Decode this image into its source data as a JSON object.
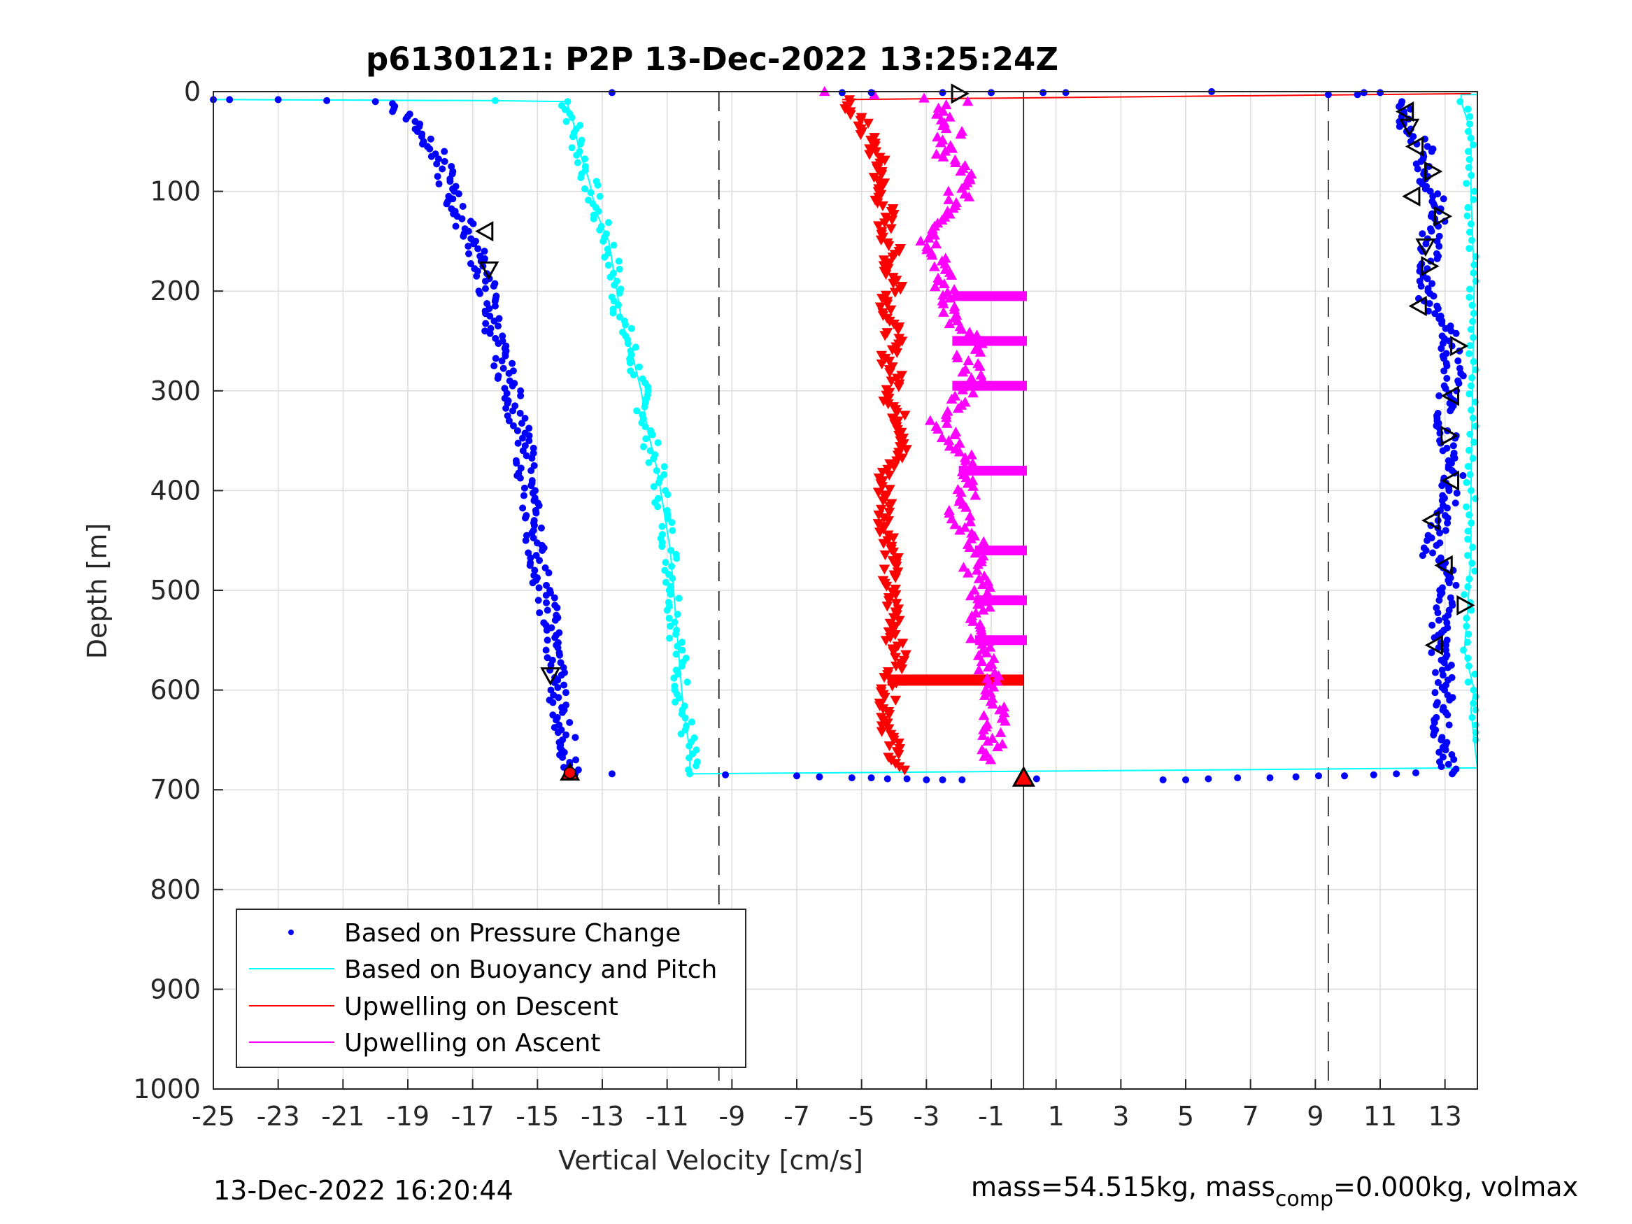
{
  "chart_data": {
    "type": "scatter",
    "title": "p6130121: P2P 13-Dec-2022 13:25:24Z",
    "xlabel": "Vertical Velocity [cm/s]",
    "ylabel": "Depth [m]",
    "xlim": [
      -25,
      14
    ],
    "ylim": [
      0,
      1000
    ],
    "y_reversed": true,
    "grid": true,
    "legend_position": "bottom-left",
    "x_ticks": [
      -25,
      -23,
      -21,
      -19,
      -17,
      -15,
      -13,
      -11,
      -9,
      -7,
      -5,
      -3,
      -1,
      1,
      3,
      5,
      7,
      9,
      11,
      13
    ],
    "y_ticks": [
      0,
      100,
      200,
      300,
      400,
      500,
      600,
      700,
      800,
      900,
      1000
    ],
    "reference_lines": [
      {
        "x": -9.4,
        "style": "dashed"
      },
      {
        "x": 9.4,
        "style": "dashed"
      },
      {
        "x": 0,
        "style": "solid"
      }
    ],
    "series": [
      {
        "name": "Based on Pressure Change",
        "color": "#0000ff",
        "marker": "dot",
        "descent": [
          [
            -25,
            8
          ],
          [
            -24.5,
            8
          ],
          [
            -23,
            8
          ],
          [
            -21.5,
            9
          ],
          [
            -20,
            10
          ],
          [
            -19.5,
            12
          ],
          [
            -19.2,
            20
          ],
          [
            -18.8,
            30
          ],
          [
            -18.3,
            50
          ],
          [
            -18,
            70
          ],
          [
            -17.8,
            90
          ],
          [
            -17.6,
            110
          ],
          [
            -17.3,
            130
          ],
          [
            -17,
            150
          ],
          [
            -16.8,
            170
          ],
          [
            -16.6,
            190
          ],
          [
            -16.5,
            210
          ],
          [
            -16.4,
            230
          ],
          [
            -16.2,
            260
          ],
          [
            -16,
            280
          ],
          [
            -15.8,
            300
          ],
          [
            -15.6,
            330
          ],
          [
            -15.4,
            360
          ],
          [
            -15.3,
            400
          ],
          [
            -15.1,
            440
          ],
          [
            -15,
            470
          ],
          [
            -14.8,
            500
          ],
          [
            -14.6,
            530
          ],
          [
            -14.5,
            560
          ],
          [
            -14.4,
            590
          ],
          [
            -14.3,
            620
          ],
          [
            -14.1,
            650
          ],
          [
            -14,
            680
          ],
          [
            -14,
            684
          ]
        ],
        "ascent": [
          [
            13.1,
            684
          ],
          [
            12.9,
            660
          ],
          [
            12.9,
            630
          ],
          [
            13,
            600
          ],
          [
            12.9,
            570
          ],
          [
            12.8,
            540
          ],
          [
            13.1,
            510
          ],
          [
            13,
            480
          ],
          [
            12.5,
            465
          ],
          [
            12.8,
            440
          ],
          [
            13.1,
            410
          ],
          [
            13.3,
            380
          ],
          [
            13.1,
            350
          ],
          [
            12.9,
            320
          ],
          [
            13.3,
            290
          ],
          [
            13.2,
            260
          ],
          [
            13,
            230
          ],
          [
            12.5,
            210
          ],
          [
            12.3,
            190
          ],
          [
            12.6,
            170
          ],
          [
            12.5,
            150
          ],
          [
            12.9,
            120
          ],
          [
            12.6,
            100
          ],
          [
            12.3,
            80
          ],
          [
            12.4,
            60
          ],
          [
            11.9,
            40
          ],
          [
            11.7,
            20
          ],
          [
            11.9,
            10
          ]
        ],
        "bottom_turnaround": [
          [
            -12.7,
            684
          ],
          [
            -9.2,
            685
          ],
          [
            -7,
            686
          ],
          [
            -6.3,
            687
          ],
          [
            -5.3,
            688
          ],
          [
            -4.7,
            688
          ],
          [
            -4.2,
            689
          ],
          [
            -3.6,
            689
          ],
          [
            -3,
            690
          ],
          [
            -2.5,
            690
          ],
          [
            -1.9,
            690
          ],
          [
            0.4,
            689
          ],
          [
            4.3,
            690
          ],
          [
            5,
            690
          ],
          [
            5.7,
            689
          ],
          [
            6.6,
            688
          ],
          [
            7.6,
            688
          ],
          [
            8.4,
            687
          ],
          [
            9.1,
            686
          ],
          [
            9.9,
            686
          ],
          [
            10.8,
            685
          ],
          [
            11.5,
            684
          ],
          [
            12.1,
            683
          ]
        ],
        "surface": [
          [
            -12.7,
            1
          ],
          [
            -5.6,
            1
          ],
          [
            -4.7,
            1
          ],
          [
            -2.5,
            1
          ],
          [
            -1,
            1
          ],
          [
            0.6,
            1
          ],
          [
            1.3,
            1
          ],
          [
            5.8,
            0
          ],
          [
            9.4,
            3
          ],
          [
            10.5,
            1
          ],
          [
            10.3,
            3
          ],
          [
            11,
            1
          ]
        ]
      },
      {
        "name": "Based on Buoyancy and Pitch",
        "color": "#00ffff",
        "marker": "line-dot",
        "descent": [
          [
            -25,
            8
          ],
          [
            -24.5,
            8
          ],
          [
            -16.3,
            9
          ],
          [
            -14.1,
            10
          ],
          [
            -13.9,
            30
          ],
          [
            -13.7,
            60
          ],
          [
            -13.4,
            90
          ],
          [
            -13.2,
            120
          ],
          [
            -12.8,
            150
          ],
          [
            -12.6,
            190
          ],
          [
            -12.4,
            230
          ],
          [
            -12.1,
            260
          ],
          [
            -11.8,
            300
          ],
          [
            -11.6,
            340
          ],
          [
            -11.3,
            380
          ],
          [
            -11.1,
            420
          ],
          [
            -10.9,
            460
          ],
          [
            -10.8,
            500
          ],
          [
            -10.7,
            540
          ],
          [
            -10.6,
            580
          ],
          [
            -10.5,
            620
          ],
          [
            -10.3,
            660
          ],
          [
            -10.3,
            684
          ]
        ],
        "ascent": [
          [
            -10.3,
            684
          ],
          [
            14,
            678
          ],
          [
            13.9,
            650
          ],
          [
            13.8,
            620
          ],
          [
            13.9,
            600
          ],
          [
            13.6,
            560
          ],
          [
            13.7,
            520
          ],
          [
            13.8,
            465
          ],
          [
            13.8,
            400
          ],
          [
            13.9,
            190
          ],
          [
            13.8,
            100
          ],
          [
            13.8,
            60
          ],
          [
            13.8,
            40
          ],
          [
            13.5,
            10
          ],
          [
            13.5,
            3
          ],
          [
            14,
            3
          ]
        ]
      },
      {
        "name": "Upwelling on Descent",
        "color": "#ff0000",
        "marker": "triangle-down",
        "points": [
          [
            -5.6,
            8
          ],
          [
            -5.2,
            20
          ],
          [
            -4.9,
            40
          ],
          [
            -4.6,
            60
          ],
          [
            -4.4,
            80
          ],
          [
            -4.5,
            100
          ],
          [
            -4.2,
            120
          ],
          [
            -4.3,
            140
          ],
          [
            -4,
            160
          ],
          [
            -4.2,
            180
          ],
          [
            -3.8,
            195
          ],
          [
            -4.2,
            210
          ],
          [
            -4.1,
            230
          ],
          [
            -4,
            250
          ],
          [
            -4.2,
            270
          ],
          [
            -3.9,
            290
          ],
          [
            -4.1,
            310
          ],
          [
            -3.8,
            330
          ],
          [
            -3.6,
            350
          ],
          [
            -4,
            370
          ],
          [
            -4.4,
            390
          ],
          [
            -4.2,
            410
          ],
          [
            -4.3,
            430
          ],
          [
            -4.1,
            450
          ],
          [
            -4,
            470
          ],
          [
            -4.2,
            490
          ],
          [
            -4.1,
            510
          ],
          [
            -3.9,
            530
          ],
          [
            -4,
            550
          ],
          [
            -3.8,
            570
          ],
          [
            -4.1,
            590
          ],
          [
            -4.2,
            610
          ],
          [
            -4.2,
            630
          ],
          [
            -4.1,
            650
          ],
          [
            -3.9,
            670
          ],
          [
            -3.8,
            680
          ]
        ],
        "zero_line_depths": [
          590
        ],
        "surface_line": [
          [
            -5.6,
            8
          ],
          [
            13.8,
            2
          ]
        ]
      },
      {
        "name": "Upwelling on Ascent",
        "color": "#ff00ff",
        "marker": "triangle-up",
        "points": [
          [
            -6.2,
            0
          ],
          [
            -2,
            10
          ],
          [
            -2.6,
            20
          ],
          [
            -2.2,
            40
          ],
          [
            -2.6,
            60
          ],
          [
            -1.8,
            80
          ],
          [
            -2,
            100
          ],
          [
            -2.1,
            120
          ],
          [
            -2.9,
            150
          ],
          [
            -2.4,
            170
          ],
          [
            -2.6,
            190
          ],
          [
            -2.2,
            210
          ],
          [
            -2.3,
            230
          ],
          [
            -1.5,
            250
          ],
          [
            -1.8,
            270
          ],
          [
            -1.4,
            290
          ],
          [
            -2.6,
            330
          ],
          [
            -2.1,
            350
          ],
          [
            -1.8,
            370
          ],
          [
            -1.5,
            390
          ],
          [
            -2.1,
            420
          ],
          [
            -1.7,
            440
          ],
          [
            -1.4,
            460
          ],
          [
            -1.6,
            480
          ],
          [
            -1.3,
            500
          ],
          [
            -1.3,
            520
          ],
          [
            -1.5,
            540
          ],
          [
            -1.2,
            560
          ],
          [
            -1.1,
            580
          ],
          [
            -1,
            600
          ],
          [
            -0.9,
            620
          ],
          [
            -0.9,
            640
          ],
          [
            -1,
            660
          ],
          [
            -1.1,
            670
          ]
        ],
        "zero_line_depths": [
          205,
          250,
          295,
          380,
          460,
          510,
          550
        ]
      }
    ],
    "markers": {
      "black_triangles": [
        [
          -2,
          2,
          "right"
        ],
        [
          -16.6,
          140,
          "left"
        ],
        [
          -16.5,
          178,
          "down"
        ],
        [
          -14.6,
          585,
          "down"
        ],
        [
          11.8,
          20,
          "left"
        ],
        [
          11.9,
          35,
          "down"
        ],
        [
          12.1,
          55,
          "left"
        ],
        [
          12.6,
          80,
          "right"
        ],
        [
          12,
          105,
          "left"
        ],
        [
          12.9,
          125,
          "right"
        ],
        [
          12.4,
          155,
          "down"
        ],
        [
          12.5,
          175,
          "right"
        ],
        [
          12.2,
          215,
          "left"
        ],
        [
          13.4,
          255,
          "right"
        ],
        [
          13.2,
          305,
          "left"
        ],
        [
          13.1,
          345,
          "right"
        ],
        [
          13.2,
          390,
          "left"
        ],
        [
          12.6,
          430,
          "left"
        ],
        [
          13,
          475,
          "left"
        ],
        [
          13.6,
          515,
          "right"
        ],
        [
          12.7,
          555,
          "left"
        ],
        [
          -14,
          683,
          "up"
        ]
      ],
      "red_triangle_bottom": [
        0,
        688
      ],
      "red_dot_bottom": [
        -14,
        683
      ]
    }
  },
  "legend": {
    "items": [
      {
        "label": "Based on Pressure Change",
        "color": "#0000ff",
        "style": "dot"
      },
      {
        "label": "Based on Buoyancy and Pitch",
        "color": "#00ffff",
        "style": "line"
      },
      {
        "label": "Upwelling on Descent",
        "color": "#ff0000",
        "style": "line"
      },
      {
        "label": "Upwelling on Ascent",
        "color": "#ff00ff",
        "style": "line"
      }
    ]
  },
  "footer": {
    "timestamp": "13-Dec-2022 16:20:44",
    "mass_text": "mass=54.515kg, mass",
    "mass_sub": "comp",
    "mass_tail": "=0.000kg, volmax"
  }
}
